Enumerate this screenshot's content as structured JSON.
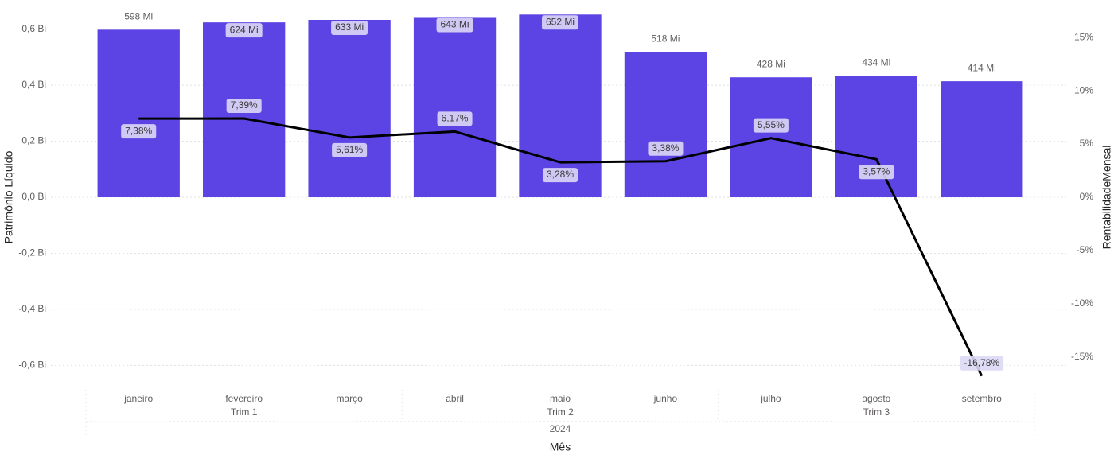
{
  "chart_data": {
    "type": "bar-line",
    "x_title": "Mês",
    "y_title": "Patrimônio Líquido",
    "y2_title": "RentabilidadeMensal",
    "categories": [
      "janeiro",
      "fevereiro",
      "março",
      "abril",
      "maio",
      "junho",
      "julho",
      "agosto",
      "setembro"
    ],
    "quarters": [
      "Trim 1",
      "Trim 2",
      "Trim 3"
    ],
    "year": "2024",
    "series": [
      {
        "name": "Patrimônio Líquido",
        "type": "bar",
        "color": "#5c44e4",
        "values": [
          0.598,
          0.624,
          0.633,
          0.643,
          0.652,
          0.518,
          0.428,
          0.434,
          0.414
        ],
        "value_labels": [
          "598 Mi",
          "624 Mi",
          "633 Mi",
          "643 Mi",
          "652 Mi",
          "518 Mi",
          "428 Mi",
          "434 Mi",
          "414 Mi"
        ]
      },
      {
        "name": "RentabilidadeMensal",
        "type": "line",
        "axis": "y2",
        "color": "#000000",
        "values": [
          7.38,
          7.39,
          5.61,
          6.17,
          3.28,
          3.38,
          5.55,
          3.57,
          -16.78
        ],
        "value_labels": [
          "7,38%",
          "7,39%",
          "5,61%",
          "6,17%",
          "3,28%",
          "3,38%",
          "5,55%",
          "3,57%",
          "-16,78%"
        ]
      }
    ],
    "ylim": [
      -0.65,
      0.65
    ],
    "yticks": [
      {
        "value": -0.6,
        "label": "-0,6 Bi"
      },
      {
        "value": -0.4,
        "label": "-0,4 Bi"
      },
      {
        "value": -0.2,
        "label": "-0,2 Bi"
      },
      {
        "value": 0,
        "label": "0,0 Bi"
      },
      {
        "value": 0.2,
        "label": "0,2 Bi"
      },
      {
        "value": 0.4,
        "label": "0,4 Bi"
      },
      {
        "value": 0.6,
        "label": "0,6 Bi"
      }
    ],
    "y2lim": [
      -17.1,
      17.1
    ],
    "y2ticks": [
      {
        "value": -15,
        "label": "-15%"
      },
      {
        "value": -10,
        "label": "-10%"
      },
      {
        "value": -5,
        "label": "-5%"
      },
      {
        "value": 0,
        "label": "0%"
      },
      {
        "value": 5,
        "label": "5%"
      },
      {
        "value": 10,
        "label": "10%"
      },
      {
        "value": 15,
        "label": "15%"
      }
    ],
    "grid": true
  }
}
